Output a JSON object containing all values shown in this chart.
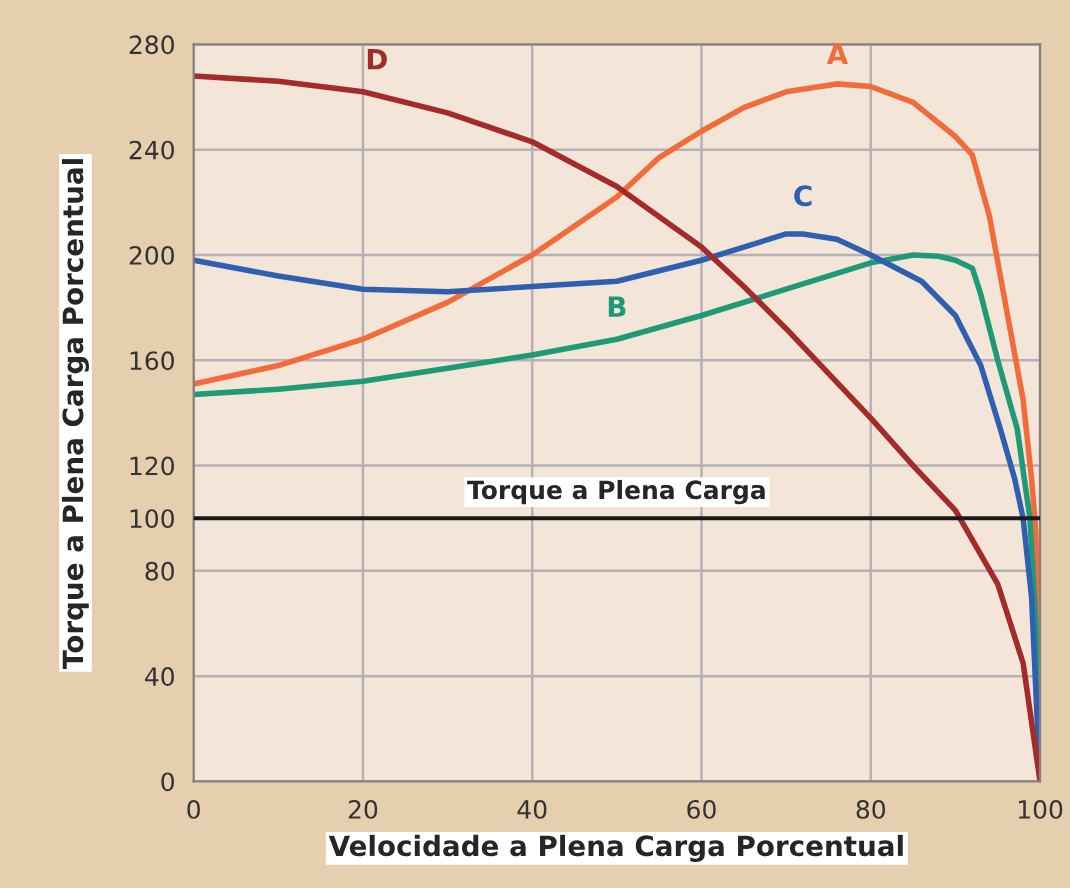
{
  "chart_data": {
    "type": "line",
    "xlabel": "Velocidade a Plena Carga Porcentual",
    "ylabel": "Torque a Plena Carga Porcentual",
    "xlim": [
      0,
      100
    ],
    "ylim": [
      0,
      280
    ],
    "xticks": [
      0,
      20,
      40,
      60,
      80,
      100
    ],
    "yticks": [
      0,
      40,
      80,
      100,
      120,
      160,
      200,
      240,
      280
    ],
    "grid": true,
    "legend": false,
    "marker": "none",
    "line_style": "solid",
    "ref_lines": [
      {
        "axis": "y",
        "value": 100,
        "label": "Torque a Plena Carga",
        "color": "#1a1a1a"
      }
    ],
    "series": [
      {
        "name": "A",
        "color": "#f26b3a",
        "x": [
          0,
          10,
          20,
          30,
          40,
          50,
          55,
          60,
          65,
          70,
          76,
          80,
          85,
          90,
          92,
          94,
          96,
          98,
          99,
          99.5,
          100
        ],
        "values": [
          151,
          158,
          168,
          182,
          200,
          222,
          237,
          247,
          256,
          262,
          265,
          264,
          258,
          245,
          238,
          215,
          180,
          145,
          115,
          95,
          0
        ]
      },
      {
        "name": "B",
        "color": "#1e9a78",
        "x": [
          0,
          10,
          20,
          30,
          40,
          50,
          60,
          70,
          80,
          85,
          88,
          90,
          92,
          93,
          95,
          97.3,
          98.8,
          99.5,
          100
        ],
        "values": [
          147,
          149,
          152,
          157,
          162,
          168,
          177,
          187,
          197,
          200,
          199.5,
          198,
          195,
          185,
          160,
          134,
          100,
          60,
          0
        ]
      },
      {
        "name": "C",
        "color": "#2f5fb0",
        "x": [
          0,
          10,
          20,
          30,
          40,
          50,
          60,
          65,
          70,
          72,
          76,
          80,
          86,
          90,
          93,
          95.3,
          97,
          98,
          99,
          100
        ],
        "values": [
          198,
          192,
          187,
          186,
          188,
          190,
          198,
          203,
          208,
          208,
          206,
          200,
          190,
          177,
          158,
          134,
          115,
          100,
          70,
          0
        ]
      },
      {
        "name": "D",
        "color": "#a52a2a",
        "x": [
          0,
          10,
          20,
          30,
          40,
          50,
          60,
          65,
          70,
          75,
          80,
          85,
          90,
          95,
          98,
          100
        ],
        "values": [
          268,
          266,
          262,
          254,
          243,
          226,
          203,
          188,
          172,
          155,
          138,
          120,
          103,
          75,
          45,
          0
        ]
      }
    ]
  }
}
